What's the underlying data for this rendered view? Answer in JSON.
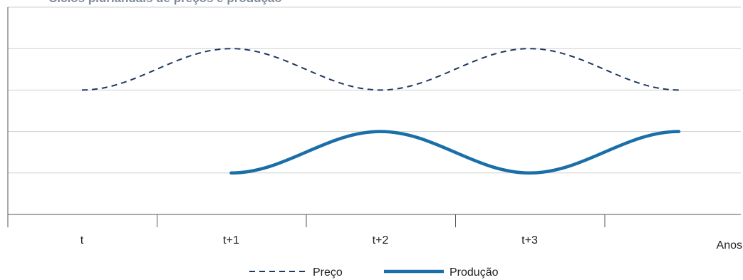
{
  "title": "Ciclos plurianuais de preços e produção",
  "chart_data": {
    "type": "line",
    "categories": [
      "t",
      "t+1",
      "t+2",
      "t+3"
    ],
    "xlabel": "Anos",
    "ylabel": "",
    "ylim": [
      0,
      5
    ],
    "grid": true,
    "legend_position": "bottom",
    "series": [
      {
        "name": "Preço",
        "style": "dashed",
        "color": "#1f3864",
        "x": [
          0,
          1,
          2,
          3,
          4
        ],
        "values": [
          3,
          4,
          3,
          4,
          3
        ]
      },
      {
        "name": "Produção",
        "style": "solid",
        "color": "#1a6fa8",
        "x": [
          1,
          2,
          3,
          4
        ],
        "values": [
          1,
          2,
          1,
          2
        ]
      }
    ]
  }
}
